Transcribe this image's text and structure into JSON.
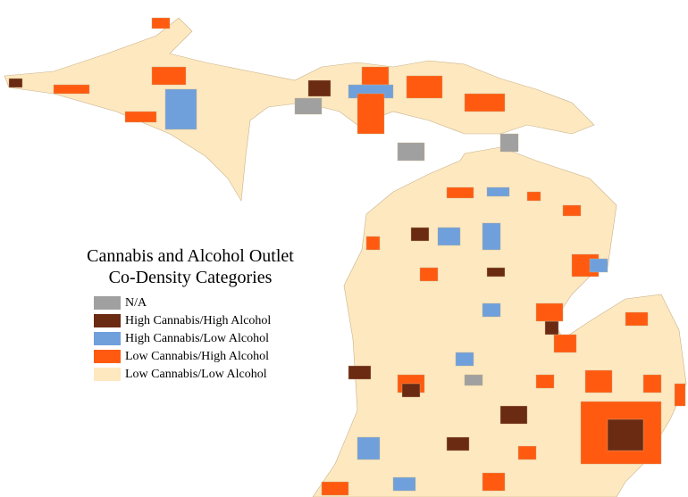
{
  "legend": {
    "title_lines": [
      "Cannabis and Alcohol Outlet",
      "Co-Density Categories"
    ],
    "items": [
      {
        "label": "N/A",
        "color": "#a0a0a0"
      },
      {
        "label": "High Cannabis/High Alcohol",
        "color": "#6b2a12"
      },
      {
        "label": "High Cannabis/Low Alcohol",
        "color": "#6fa0dc"
      },
      {
        "label": "Low Cannabis/High Alcohol",
        "color": "#ff5a10"
      },
      {
        "label": "Low Cannabis/Low Alcohol",
        "color": "#fde8c0"
      }
    ]
  }
}
